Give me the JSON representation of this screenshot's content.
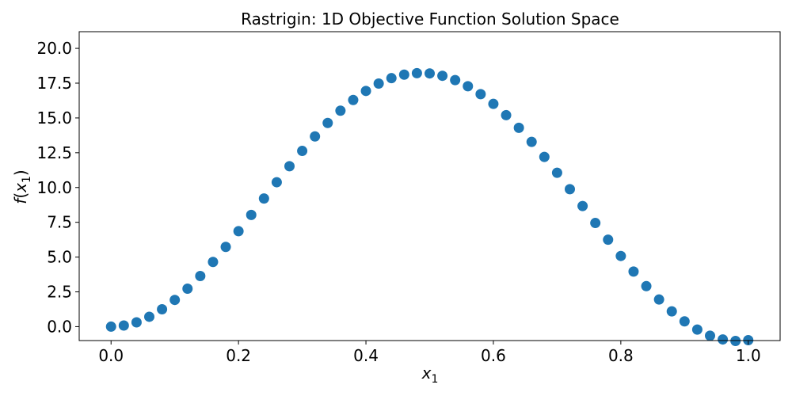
{
  "chart_data": {
    "type": "scatter",
    "title": "Rastrigin: 1D Objective Function Solution Space",
    "xlabel": {
      "var": "x",
      "sub": "1"
    },
    "ylabel": {
      "fn": "f",
      "var": "x",
      "sub": "1"
    },
    "xlim": [
      -0.05,
      1.05
    ],
    "ylim": [
      -1.0,
      21.2
    ],
    "xticks": [
      0.0,
      0.2,
      0.4,
      0.6,
      0.8,
      1.0
    ],
    "xtick_labels": [
      "0.0",
      "0.2",
      "0.4",
      "0.6",
      "0.8",
      "1.0"
    ],
    "yticks": [
      0.0,
      2.5,
      5.0,
      7.5,
      10.0,
      12.5,
      15.0,
      17.5,
      20.0
    ],
    "ytick_labels": [
      "0.0",
      "2.5",
      "5.0",
      "7.5",
      "10.0",
      "12.5",
      "15.0",
      "17.5",
      "20.0"
    ],
    "grid": false,
    "series": [
      {
        "color": "#1f77b4",
        "x": [
          0.0,
          0.02,
          0.04,
          0.06,
          0.08,
          0.1,
          0.12,
          0.14,
          0.16,
          0.18,
          0.2,
          0.22,
          0.24,
          0.26,
          0.28,
          0.3,
          0.32,
          0.34,
          0.36,
          0.38,
          0.4,
          0.42,
          0.44,
          0.46,
          0.48,
          0.5,
          0.52,
          0.54,
          0.56,
          0.58,
          0.6,
          0.62,
          0.64,
          0.66,
          0.68,
          0.7,
          0.72,
          0.74,
          0.76,
          0.78,
          0.8,
          0.82,
          0.84,
          0.86,
          0.88,
          0.9,
          0.92,
          0.94,
          0.96,
          0.98,
          1.0
        ],
        "y": [
          0.0,
          0.08,
          0.31,
          0.71,
          1.25,
          1.92,
          2.73,
          3.64,
          4.65,
          5.73,
          6.86,
          8.03,
          9.21,
          10.38,
          11.53,
          12.63,
          13.67,
          14.64,
          15.52,
          16.29,
          16.94,
          17.47,
          17.86,
          18.11,
          18.22,
          18.2,
          18.03,
          17.72,
          17.28,
          16.71,
          16.01,
          15.2,
          14.29,
          13.28,
          12.2,
          11.06,
          9.88,
          8.67,
          7.45,
          6.25,
          5.08,
          3.96,
          2.91,
          1.95,
          1.1,
          0.38,
          -0.21,
          -0.65,
          -0.92,
          -1.03,
          -0.97
        ]
      }
    ]
  }
}
